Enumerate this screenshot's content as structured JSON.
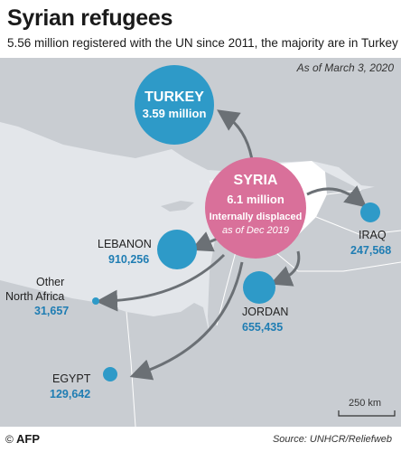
{
  "header": {
    "title": "Syrian refugees",
    "subtitle": "5.56 million registered with the UN since 2011, the majority are in Turkey"
  },
  "map": {
    "date_note": "As of March 3, 2020",
    "scale_label": "250 km",
    "colors": {
      "refugee_circle": "#2e9ac8",
      "syria_circle": "#d9709a",
      "value_text": "#1f7db3",
      "arrow": "#6b7075",
      "land": "#c9cdd2",
      "syria_land": "#ffffff",
      "sea": "#e3e6ea"
    }
  },
  "syria": {
    "name": "SYRIA",
    "value": "6.1 million",
    "note1": "Internally displaced",
    "note2": "as of Dec 2019"
  },
  "destinations": {
    "turkey": {
      "name": "TURKEY",
      "value": "3.59 million"
    },
    "lebanon": {
      "name": "LEBANON",
      "value": "910,256"
    },
    "iraq": {
      "name": "IRAQ",
      "value": "247,568"
    },
    "jordan": {
      "name": "JORDAN",
      "value": "655,435"
    },
    "north_africa": {
      "name_line1": "Other",
      "name_line2": "North Africa",
      "value": "31,657"
    },
    "egypt": {
      "name": "EGYPT",
      "value": "129,642"
    }
  },
  "footer": {
    "logo": "AFP",
    "source": "Source: UNHCR/Reliefweb"
  }
}
